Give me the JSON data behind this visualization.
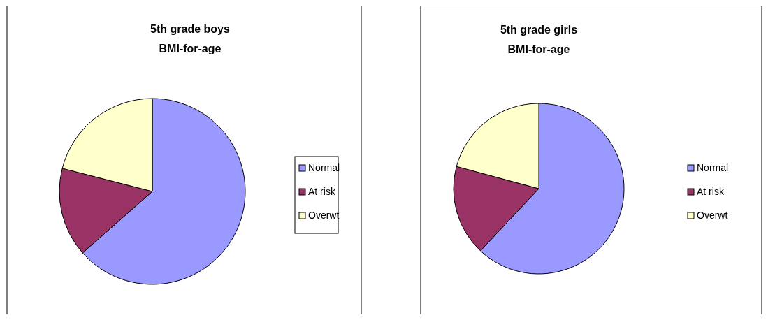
{
  "chart_data": [
    {
      "type": "pie",
      "title": "5th grade boys\nBMI-for-age",
      "categories": [
        "Normal",
        "At risk",
        "Overwt"
      ],
      "values": [
        63.5,
        15.5,
        21
      ],
      "colors": [
        "#9999ff",
        "#993366",
        "#ffffcc"
      ],
      "legend": "right"
    },
    {
      "type": "pie",
      "title": "5th grade girls\nBMI-for-age",
      "categories": [
        "Normal",
        "At risk",
        "Overwt"
      ],
      "values": [
        62,
        17.2,
        20.8
      ],
      "colors": [
        "#9999ff",
        "#993366",
        "#ffffcc"
      ],
      "legend": "right"
    }
  ]
}
